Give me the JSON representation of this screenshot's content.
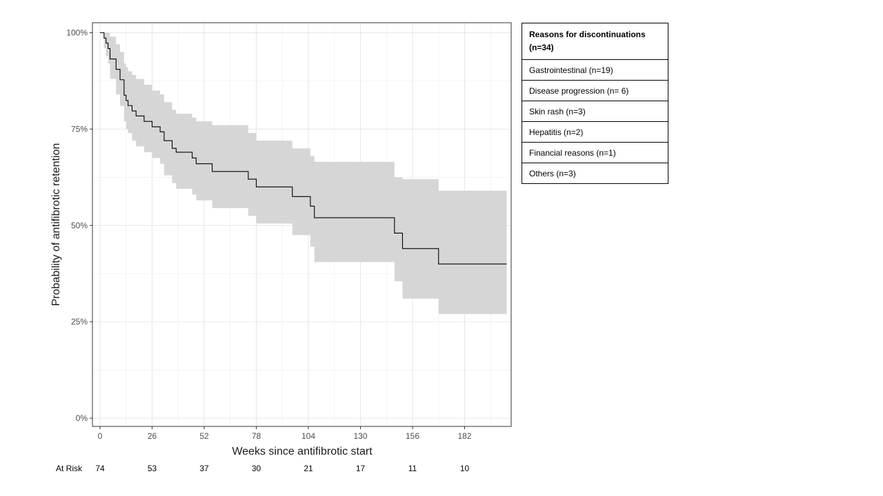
{
  "chart_data": {
    "type": "line",
    "subtype": "kaplan-meier step curve with confidence band",
    "xlabel": "Weeks since antifibrotic start",
    "ylabel": "Probability of antifibrotic retention",
    "xlim": [
      -1.5,
      204.5
    ],
    "ylim": [
      0,
      1
    ],
    "x_ticks": [
      0,
      26,
      52,
      78,
      104,
      130,
      156,
      182
    ],
    "y_ticks": [
      0,
      0.25,
      0.5,
      0.75,
      1.0
    ],
    "y_tick_labels": [
      "0%",
      "25%",
      "50%",
      "75%",
      "100%"
    ],
    "grid": true,
    "color": "#000000",
    "band_color": "#d6d6d6",
    "steps": [
      {
        "x": 0,
        "y": 1.0,
        "lo": 1.0,
        "hi": 1.0
      },
      {
        "x": 2,
        "y": 0.986,
        "lo": 0.96,
        "hi": 1.0
      },
      {
        "x": 3,
        "y": 0.973,
        "lo": 0.94,
        "hi": 1.0
      },
      {
        "x": 4,
        "y": 0.959,
        "lo": 0.92,
        "hi": 1.0
      },
      {
        "x": 5,
        "y": 0.932,
        "lo": 0.88,
        "hi": 0.99
      },
      {
        "x": 8,
        "y": 0.905,
        "lo": 0.84,
        "hi": 0.97
      },
      {
        "x": 10,
        "y": 0.878,
        "lo": 0.81,
        "hi": 0.95
      },
      {
        "x": 12,
        "y": 0.838,
        "lo": 0.77,
        "hi": 0.92
      },
      {
        "x": 13,
        "y": 0.824,
        "lo": 0.75,
        "hi": 0.91
      },
      {
        "x": 14,
        "y": 0.811,
        "lo": 0.74,
        "hi": 0.9
      },
      {
        "x": 16,
        "y": 0.797,
        "lo": 0.72,
        "hi": 0.89
      },
      {
        "x": 18,
        "y": 0.784,
        "lo": 0.705,
        "hi": 0.88
      },
      {
        "x": 22,
        "y": 0.77,
        "lo": 0.69,
        "hi": 0.865
      },
      {
        "x": 26,
        "y": 0.756,
        "lo": 0.675,
        "hi": 0.85
      },
      {
        "x": 30,
        "y": 0.743,
        "lo": 0.66,
        "hi": 0.84
      },
      {
        "x": 32,
        "y": 0.72,
        "lo": 0.63,
        "hi": 0.82
      },
      {
        "x": 36,
        "y": 0.7,
        "lo": 0.61,
        "hi": 0.8
      },
      {
        "x": 38,
        "y": 0.69,
        "lo": 0.595,
        "hi": 0.79
      },
      {
        "x": 46,
        "y": 0.675,
        "lo": 0.58,
        "hi": 0.78
      },
      {
        "x": 48,
        "y": 0.66,
        "lo": 0.565,
        "hi": 0.77
      },
      {
        "x": 56,
        "y": 0.64,
        "lo": 0.545,
        "hi": 0.76
      },
      {
        "x": 74,
        "y": 0.62,
        "lo": 0.525,
        "hi": 0.74
      },
      {
        "x": 78,
        "y": 0.6,
        "lo": 0.505,
        "hi": 0.72
      },
      {
        "x": 96,
        "y": 0.575,
        "lo": 0.475,
        "hi": 0.7
      },
      {
        "x": 105,
        "y": 0.55,
        "lo": 0.445,
        "hi": 0.68
      },
      {
        "x": 107,
        "y": 0.52,
        "lo": 0.405,
        "hi": 0.665
      },
      {
        "x": 147,
        "y": 0.48,
        "lo": 0.355,
        "hi": 0.625
      },
      {
        "x": 151,
        "y": 0.44,
        "lo": 0.31,
        "hi": 0.62
      },
      {
        "x": 169,
        "y": 0.4,
        "lo": 0.27,
        "hi": 0.59
      },
      {
        "x": 203,
        "y": 0.4,
        "lo": 0.27,
        "hi": 0.59
      }
    ],
    "at_risk": {
      "label": "At Risk",
      "x": [
        0,
        26,
        52,
        78,
        104,
        130,
        156,
        182
      ],
      "values": [
        "74",
        "53",
        "37",
        "30",
        "21",
        "17",
        "11",
        "10"
      ]
    }
  },
  "table": {
    "header": "Reasons for discontinuations (n=34)",
    "rows": [
      "Gastrointestinal  (n=19)",
      "Disease progression (n= 6)",
      "Skin rash (n=3)",
      "Hepatitis (n=2)",
      "Financial reasons (n=1)",
      "Others (n=3)"
    ]
  }
}
